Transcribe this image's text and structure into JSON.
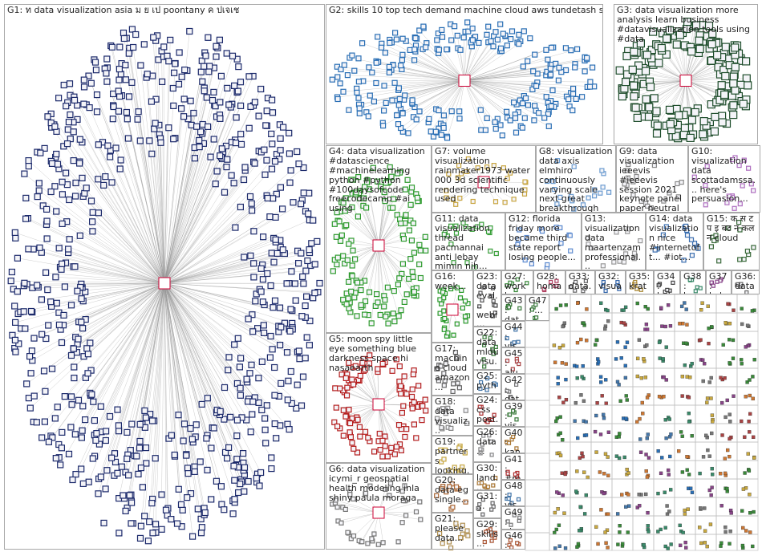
{
  "groups": [
    {
      "label": "G1: ท data visualization asia ม ย เป poontany ค ปเจเช"
    },
    {
      "label": "G2: skills 10 top tech demand machine cloud aws tundetash still"
    },
    {
      "label": "G3: data visualization more analysis learn business #datavisualization tools using #data"
    },
    {
      "label": "G4: data visualization #datascience #machinelearning python #python #100daysofcode freecodecamp #ai using"
    },
    {
      "label": "G5: moon spy little eye something blue darkness space hi nasaearth"
    },
    {
      "label": "G6: data visualization icymi_r geospatial health modeling inla shiny paula moraga"
    },
    {
      "label": "G7: volume visualization rainmaker1973 water 000 3d scientific rendering technique used"
    },
    {
      "label": "G8: visualization data axis elmhiro continuously varying scale next great breakthrough"
    },
    {
      "label": "G9: data visualization ieeevis #ieeevis session 2021 keynote panel paper neutral"
    },
    {
      "label": "G10: visualization data scottadamssa... here's persuasion..."
    },
    {
      "label": "G11: data visualization thread pacmannai anti lebay mimin nih..."
    },
    {
      "label": "G12: florida friday more became third state report losing people..."
    },
    {
      "label": "G13: visualization data maartenzam professional..."
    },
    {
      "label": "G14: data visualization nice #internetoft... #iot..."
    },
    {
      "label": "G15: क स ट प इ बट न कल न cloud"
    },
    {
      "label": "G16: week..."
    },
    {
      "label": "G17: machine cloud amazon..."
    },
    {
      "label": "G18: data visualiz..."
    },
    {
      "label": "G19: partners looking..."
    },
    {
      "label": "G20: data eg single..."
    },
    {
      "label": "G21: please data..."
    },
    {
      "label": "G23: data eval... webi..."
    },
    {
      "label": "G22: data mldu visu... ela..."
    },
    {
      "label": "G25: pyth... usin..."
    },
    {
      "label": "G24: css post..."
    },
    {
      "label": "G26: data..."
    },
    {
      "label": "G30: land..."
    },
    {
      "label": "G31: ..."
    },
    {
      "label": "G29: skills..."
    },
    {
      "label": "G27: workb..."
    },
    {
      "label": "G28: homa..."
    },
    {
      "label": "G33: data..."
    },
    {
      "label": "G32: visua..."
    },
    {
      "label": "G35: krato..."
    },
    {
      "label": "G34: boke..."
    },
    {
      "label": "G38: hop..."
    },
    {
      "label": "G37: hcl..."
    },
    {
      "label": "G36: data..."
    },
    {
      "label": "G43: dat..."
    },
    {
      "label": "G44: vis..."
    },
    {
      "label": "G45: alu..."
    },
    {
      "label": "G42: dat..."
    },
    {
      "label": "G39: vis..."
    },
    {
      "label": "G40: kan..."
    },
    {
      "label": "G41: #ro..."
    },
    {
      "label": "G48: vis..."
    },
    {
      "label": "G49: cla..."
    },
    {
      "label": "G46: mv..."
    },
    {
      "label": "G47: ..."
    }
  ]
}
